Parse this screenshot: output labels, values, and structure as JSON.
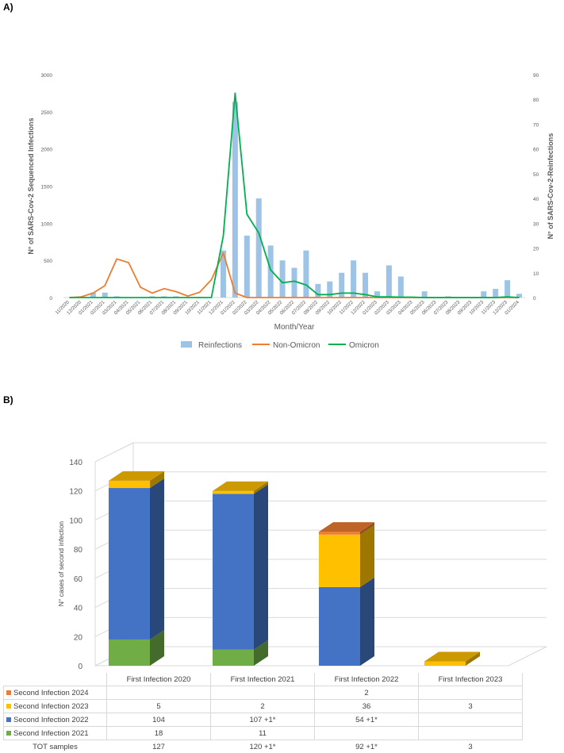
{
  "panel_a_label": "A)",
  "panel_b_label": "B)",
  "chart_data": [
    {
      "type": "bar",
      "panel": "A",
      "xlabel": "Month/Year",
      "ylabel_left": "N° of SARS-Cov-2 Sequenced Infections",
      "ylabel_right": "N° of SARS-Cov-2-Reinfections",
      "ylim_left": [
        0,
        3000
      ],
      "yticks_left": [
        0,
        500,
        1000,
        1500,
        2000,
        2500,
        3000
      ],
      "ylim_right": [
        0,
        90
      ],
      "yticks_right": [
        0,
        10,
        20,
        30,
        40,
        50,
        60,
        70,
        80,
        90
      ],
      "grid": false,
      "legend_position": "bottom",
      "categories": [
        "11/2020",
        "12/2020",
        "01/2021",
        "02/2021",
        "03/2021",
        "04/2021",
        "05/2021",
        "06/2021",
        "07/2021",
        "08/2021",
        "09/2021",
        "10/2021",
        "11/2021",
        "12/2021",
        "01/2022",
        "02/2022",
        "03/2022",
        "04/2022",
        "05/2022",
        "06/2022",
        "07/2022",
        "08/2022",
        "09/2022",
        "10/2022",
        "11/2022",
        "12/2022",
        "01/2023",
        "02/2023",
        "03/2023",
        "04/2023",
        "05/2023",
        "06/2023",
        "07/2023",
        "08/2023",
        "09/2023",
        "10/2023",
        "11/2023",
        "12/2023",
        "01/2024"
      ],
      "series": [
        {
          "name": "Reinfections",
          "kind": "bar",
          "axis": "right",
          "color": "#9dc3e6",
          "values": [
            0,
            0,
            2,
            2,
            0.5,
            0,
            0,
            0.5,
            0.5,
            0.5,
            0,
            0.3,
            0,
            19,
            79,
            25,
            40,
            21,
            15,
            12,
            19,
            5.5,
            6.5,
            10,
            15,
            10,
            2.5,
            13,
            8.5,
            0,
            2.5,
            0,
            0.5,
            0,
            0,
            2.5,
            3.5,
            7,
            1.5
          ]
        },
        {
          "name": "Non-Omicron",
          "kind": "line",
          "axis": "left",
          "color": "#ed7d31",
          "values": [
            0,
            10,
            60,
            160,
            520,
            470,
            140,
            60,
            120,
            80,
            20,
            70,
            240,
            600,
            60,
            0,
            0,
            0,
            0,
            0,
            0,
            0,
            0,
            0,
            0,
            0,
            0,
            0,
            0,
            0,
            0,
            0,
            0,
            0,
            0,
            0,
            0,
            0,
            0
          ]
        },
        {
          "name": "Omicron",
          "kind": "line",
          "axis": "left",
          "color": "#00b050",
          "values": [
            0,
            0,
            0,
            0,
            0,
            0,
            0,
            0,
            0,
            0,
            0,
            0,
            0,
            830,
            2750,
            1120,
            870,
            370,
            200,
            220,
            170,
            40,
            40,
            60,
            60,
            40,
            10,
            10,
            5,
            5,
            0,
            0,
            0,
            0,
            0,
            0,
            0,
            10,
            0
          ]
        }
      ]
    },
    {
      "type": "bar",
      "panel": "B",
      "stacked": true,
      "style": "3d",
      "ylabel": "N° cases of second infection",
      "ylim": [
        0,
        140
      ],
      "yticks": [
        0,
        20,
        40,
        60,
        80,
        100,
        120,
        140
      ],
      "grid": true,
      "categories": [
        "First Infection 2020",
        "First Infection 2021",
        "First Infection 2022",
        "First Infection 2023"
      ],
      "series": [
        {
          "name": "Second Infection 2021",
          "color": "#70ad47",
          "values": [
            18,
            11,
            0,
            0
          ],
          "labels": [
            "18",
            "11",
            "",
            ""
          ]
        },
        {
          "name": "Second Infection 2022",
          "color": "#4472c4",
          "values": [
            104,
            107,
            54,
            0
          ],
          "labels": [
            "104",
            "107 +1*",
            "54  +1*",
            ""
          ]
        },
        {
          "name": "Second Infection 2023",
          "color": "#ffc000",
          "values": [
            5,
            2,
            36,
            3
          ],
          "labels": [
            "5",
            "2",
            "36",
            "3"
          ]
        },
        {
          "name": "Second Infection 2024",
          "color": "#ed7d31",
          "values": [
            0,
            0,
            2,
            0
          ],
          "labels": [
            "",
            "",
            "2",
            ""
          ]
        }
      ],
      "totals_label": "TOT samples",
      "totals": [
        "127",
        "120 +1*",
        "92 +1*",
        "3"
      ]
    }
  ]
}
